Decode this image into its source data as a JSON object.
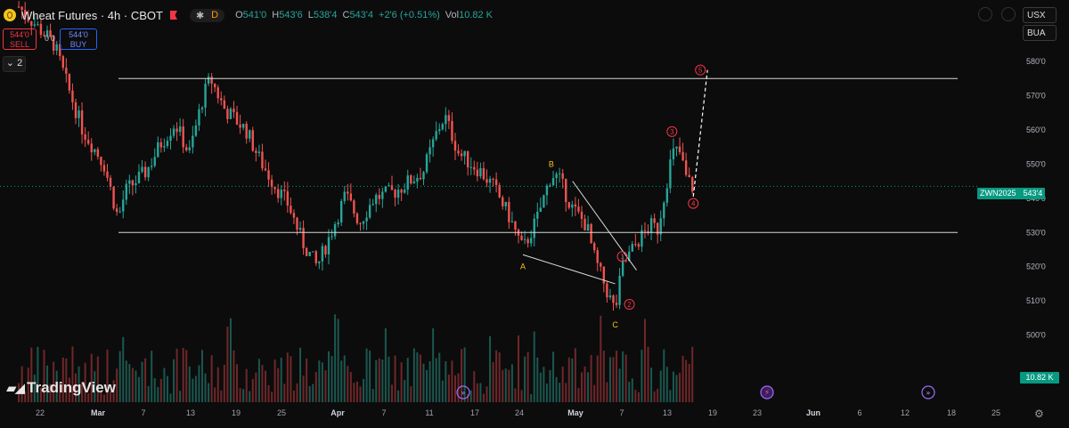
{
  "header": {
    "title": "Wheat Futures · 4h · CBOT",
    "interval_badge": "D",
    "ohlc": {
      "open_label": "O",
      "open": "541'0",
      "high_label": "H",
      "high": "543'6",
      "low_label": "L",
      "low": "538'4",
      "close_label": "C",
      "close": "543'4",
      "change": "+2'6 (+0.51%)",
      "vol_label": "Vol",
      "vol": "10.82 K"
    }
  },
  "trade": {
    "sell_price": "544'0",
    "sell_label": "SELL",
    "buy_price": "544'0",
    "buy_label": "BUY",
    "spread": "0'0"
  },
  "panel": {
    "collapse_label": "2"
  },
  "right_panel": {
    "currency": "USX",
    "account": "BUA"
  },
  "branding": {
    "logo_text": "TradingView",
    "logo_icon": "tradingview-logo"
  },
  "price_label": {
    "symbol": "ZWN2025",
    "price": "543'4"
  },
  "volume_label": "10.82 K",
  "colors": {
    "up": "#26a69a",
    "down": "#ef5350",
    "wave_red": "#f23645",
    "wave_yellow": "#f5c518",
    "accent": "#089981"
  },
  "chart_data": {
    "type": "candlestick",
    "title": "Wheat Futures · 4h · CBOT",
    "y_axis": {
      "ticks": [
        "500'0",
        "510'0",
        "520'0",
        "530'0",
        "540'0",
        "550'0",
        "560'0",
        "570'0",
        "580'0"
      ],
      "range": [
        496,
        586
      ]
    },
    "x_axis": {
      "ticks": [
        "22",
        "Mar",
        "7",
        "13",
        "19",
        "25",
        "Apr",
        "7",
        "11",
        "17",
        "24",
        "May",
        "7",
        "13",
        "19",
        "23",
        "Jun",
        "6",
        "12",
        "18",
        "25"
      ]
    },
    "horizontal_levels": [
      575,
      530
    ],
    "current_price": 543.5,
    "price_path": [
      [
        "2025-02-19",
        596
      ],
      [
        "2025-02-24",
        585
      ],
      [
        "2025-02-26",
        572
      ],
      [
        "2025-02-28",
        560
      ],
      [
        "2025-03-03",
        550
      ],
      [
        "2025-03-05",
        534
      ],
      [
        "2025-03-06",
        542
      ],
      [
        "2025-03-09",
        548
      ],
      [
        "2025-03-11",
        556
      ],
      [
        "2025-03-13",
        562
      ],
      [
        "2025-03-15",
        553
      ],
      [
        "2025-03-17",
        570
      ],
      [
        "2025-03-18",
        575
      ],
      [
        "2025-03-20",
        566
      ],
      [
        "2025-03-23",
        560
      ],
      [
        "2025-03-25",
        551
      ],
      [
        "2025-03-27",
        544
      ],
      [
        "2025-03-29",
        538
      ],
      [
        "2025-03-31",
        527
      ],
      [
        "2025-04-02",
        520
      ],
      [
        "2025-04-04",
        530
      ],
      [
        "2025-04-06",
        541
      ],
      [
        "2025-04-08",
        533
      ],
      [
        "2025-04-10",
        540
      ],
      [
        "2025-04-13",
        542
      ],
      [
        "2025-04-15",
        545
      ],
      [
        "2025-04-17",
        548
      ],
      [
        "2025-04-19",
        560
      ],
      [
        "2025-04-20",
        564
      ],
      [
        "2025-04-22",
        553
      ],
      [
        "2025-04-25",
        548
      ],
      [
        "2025-04-27",
        543
      ],
      [
        "2025-04-29",
        535
      ],
      [
        "2025-05-01",
        525
      ],
      [
        "2025-05-03",
        534
      ],
      [
        "2025-05-05",
        547
      ],
      [
        "2025-05-06",
        546
      ],
      [
        "2025-05-08",
        537
      ],
      [
        "2025-05-10",
        532
      ],
      [
        "2025-05-11",
        523
      ],
      [
        "2025-05-13",
        512
      ],
      [
        "2025-05-14",
        507
      ],
      [
        "2025-05-15",
        520
      ],
      [
        "2025-05-17",
        527
      ],
      [
        "2025-05-19",
        532
      ],
      [
        "2025-05-20",
        531
      ],
      [
        "2025-05-21",
        542
      ],
      [
        "2025-05-22",
        553
      ],
      [
        "2025-05-23",
        554
      ],
      [
        "2025-05-24",
        546
      ],
      [
        "2025-05-25",
        543
      ]
    ],
    "volume": "10.82 K",
    "wave_labels": [
      {
        "text": "A",
        "date": "2025-05-01",
        "price": 520
      },
      {
        "text": "B",
        "date": "2025-05-05",
        "price": 550
      },
      {
        "text": "C",
        "date": "2025-05-14",
        "price": 503
      },
      {
        "text": "1",
        "date": "2025-05-15",
        "price": 523
      },
      {
        "text": "2",
        "date": "2025-05-16",
        "price": 509
      },
      {
        "text": "3",
        "date": "2025-05-22",
        "price": 559.5
      },
      {
        "text": "4",
        "date": "2025-05-25",
        "price": 538.5
      },
      {
        "text": "5",
        "date": "2025-05-26",
        "price": 577.5
      }
    ]
  }
}
